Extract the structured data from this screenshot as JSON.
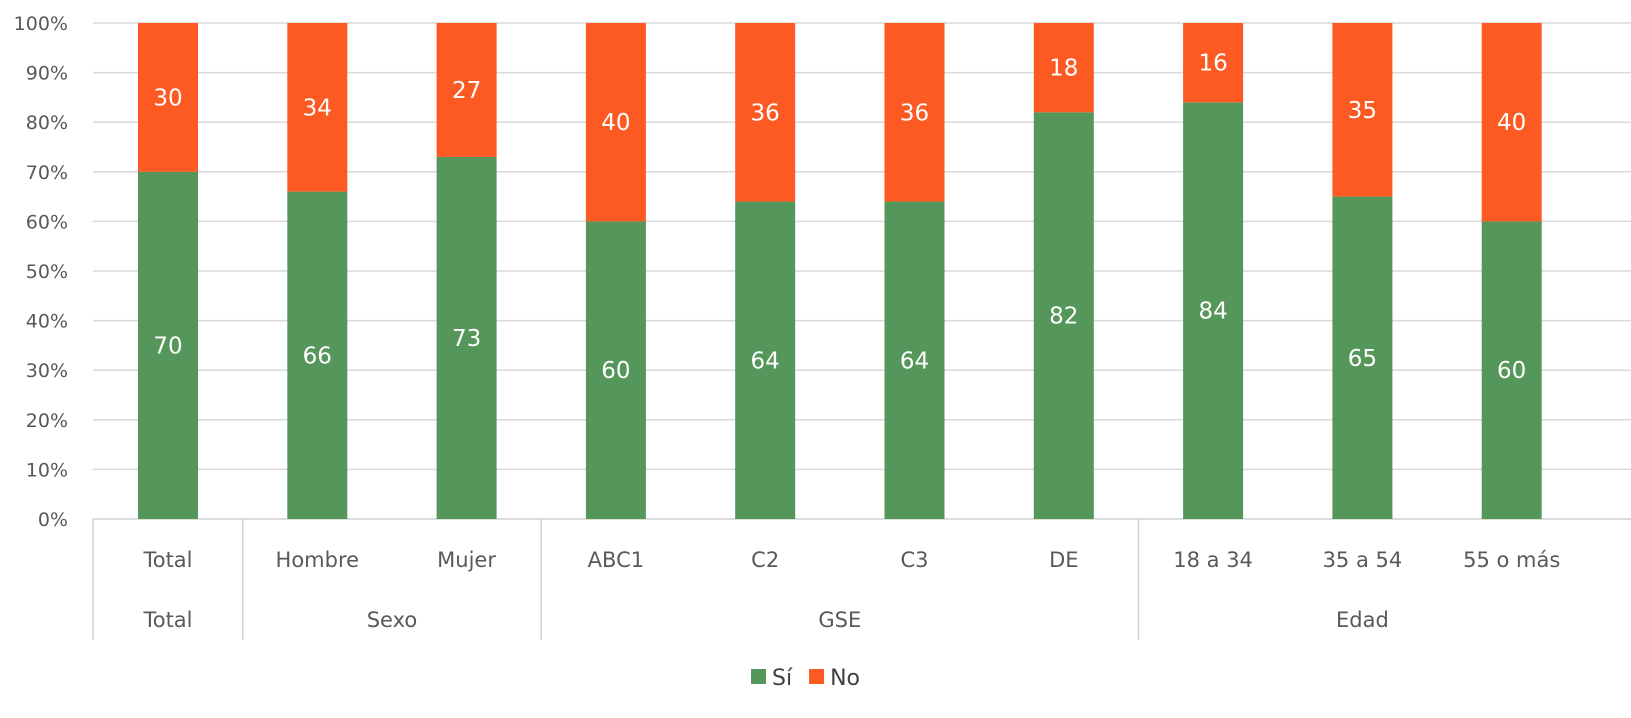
{
  "chart_data": {
    "type": "bar",
    "stacked": true,
    "percent": true,
    "categories": [
      "Total",
      "Hombre",
      "Mujer",
      "ABC1",
      "C2",
      "C3",
      "DE",
      "18 a 34",
      "35 a 54",
      "55 o más"
    ],
    "groups": [
      {
        "label": "Total",
        "categories": [
          "Total"
        ]
      },
      {
        "label": "Sexo",
        "categories": [
          "Hombre",
          "Mujer"
        ]
      },
      {
        "label": "GSE",
        "categories": [
          "ABC1",
          "C2",
          "C3",
          "DE"
        ]
      },
      {
        "label": "Edad",
        "categories": [
          "18 a 34",
          "35 a 54",
          "55 o más"
        ]
      }
    ],
    "series": [
      {
        "name": "Sí",
        "color": "#55965a",
        "values": [
          70,
          66,
          73,
          60,
          64,
          64,
          82,
          84,
          65,
          60
        ]
      },
      {
        "name": "No",
        "color": "#fc5a22",
        "values": [
          30,
          34,
          27,
          40,
          36,
          36,
          18,
          16,
          35,
          40
        ]
      }
    ],
    "ylim": [
      0,
      100
    ],
    "yticks": [
      "0%",
      "10%",
      "20%",
      "30%",
      "40%",
      "50%",
      "60%",
      "70%",
      "80%",
      "90%",
      "100%"
    ],
    "grid": true,
    "legend_position": "bottom"
  }
}
